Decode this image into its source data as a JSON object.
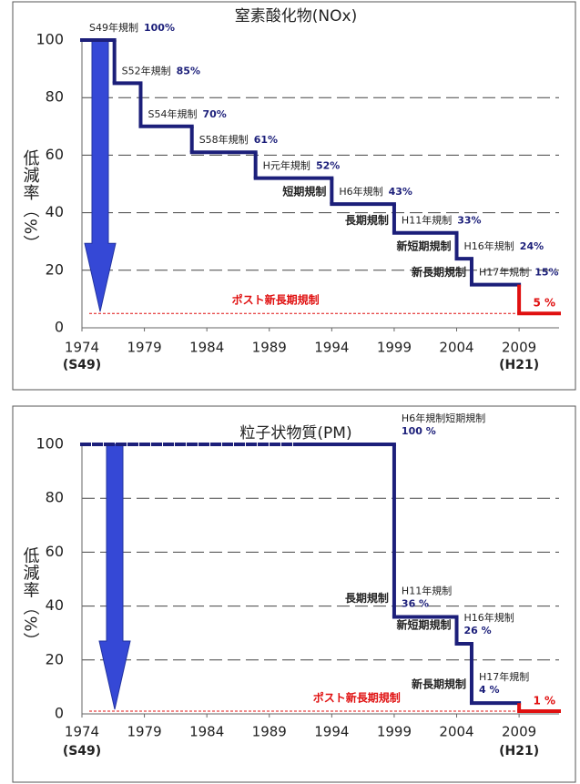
{
  "chart_data": [
    {
      "type": "step",
      "title": "窒素酸化物(NOx)",
      "y_label": "低減率（%）",
      "xlim": [
        1974,
        2012.2
      ],
      "xticks": [
        1974,
        1979,
        1984,
        1989,
        1994,
        1999,
        2004,
        2009
      ],
      "x_era_labels": [
        {
          "value": 1974,
          "label": "(S49)"
        },
        {
          "value": 2009,
          "label": "(H21)"
        }
      ],
      "ylim": [
        0,
        100
      ],
      "yticks": [
        0,
        20,
        40,
        60,
        80,
        100
      ],
      "grid": true,
      "color": "#1c1f7a",
      "final_color": "#e01010",
      "x": [
        1974,
        1976.6,
        1978.7,
        1982.8,
        1987.9,
        1994,
        1999,
        2004,
        2005.2,
        2009
      ],
      "values": [
        100,
        85,
        70,
        61,
        52,
        43,
        33,
        24,
        15,
        5
      ],
      "value_labels": [
        "100%",
        "85%",
        "70%",
        "61%",
        "52%",
        "43%",
        "33%",
        "24%",
        "15%",
        "5 %"
      ],
      "labels": [
        "S49年規制",
        "S52年規制",
        "S54年規制",
        "S58年規制",
        "H元年規制",
        "H6年規制",
        "H11年規制",
        "H16年規制",
        "H17年規制",
        null
      ],
      "phases": [
        null,
        null,
        null,
        null,
        null,
        "短期規制",
        "長期規制",
        "新短期規制",
        "新長期規制",
        null
      ],
      "post_label": "ポスト新長期規制",
      "first_segment_dashed": false
    },
    {
      "type": "step",
      "title": "粒子状物質(PM)",
      "y_label": "低減率（%）",
      "xlim": [
        1974,
        2012.2
      ],
      "xticks": [
        1974,
        1979,
        1984,
        1989,
        1994,
        1999,
        2004,
        2009
      ],
      "x_era_labels": [
        {
          "value": 1974,
          "label": "(S49)"
        },
        {
          "value": 2009,
          "label": "(H21)"
        }
      ],
      "ylim": [
        0,
        100
      ],
      "yticks": [
        0,
        20,
        40,
        60,
        80,
        100
      ],
      "grid": true,
      "color": "#1c1f7a",
      "final_color": "#e01010",
      "x": [
        1974,
        1999,
        2004,
        2005.2,
        2009
      ],
      "values": [
        100,
        36,
        26,
        4,
        1
      ],
      "value_labels": [
        "100 %",
        "36 %",
        "26 %",
        "4 %",
        "1 %"
      ],
      "labels": [
        "H6年規制短期規制",
        "H11年規制",
        "H16年規制",
        "H17年規制",
        null
      ],
      "phases": [
        null,
        "長期規制",
        "新短期規制",
        "新長期規制",
        null
      ],
      "post_label": "ポスト新長期規制",
      "first_segment_dashed": true
    }
  ]
}
